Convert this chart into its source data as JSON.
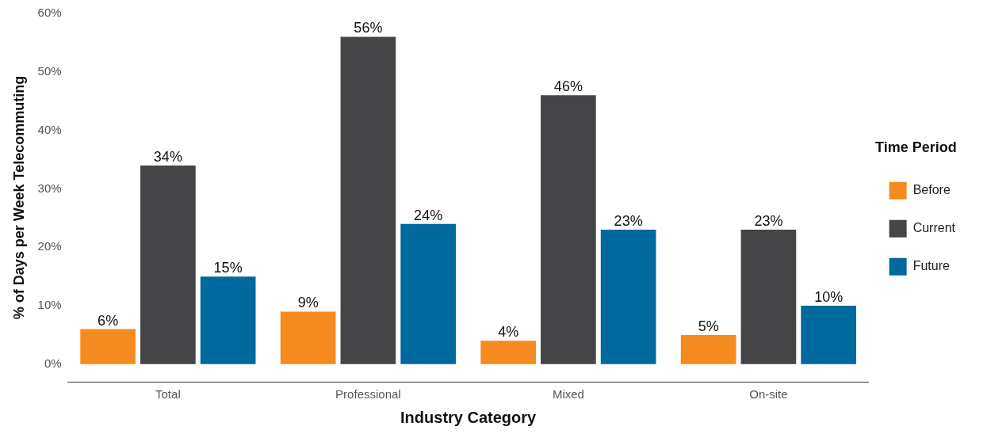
{
  "chart_data": {
    "type": "bar",
    "xlabel": "Industry Category",
    "ylabel": "% of Days per Week Telecommuting",
    "legend_title": "Time Period",
    "legend": "right",
    "grid": false,
    "categories": [
      "Total",
      "Professional",
      "Mixed",
      "On-site"
    ],
    "series": [
      {
        "name": "Before",
        "color": "#f58b1f",
        "values": [
          6,
          9,
          4,
          5
        ],
        "value_labels": [
          "6%",
          "9%",
          "4%",
          "5%"
        ]
      },
      {
        "name": "Current",
        "color": "#454547",
        "values": [
          34,
          56,
          46,
          23
        ],
        "value_labels": [
          "34%",
          "56%",
          "46%",
          "23%"
        ]
      },
      {
        "name": "Future",
        "color": "#00699e",
        "values": [
          15,
          24,
          23,
          10
        ],
        "value_labels": [
          "15%",
          "24%",
          "23%",
          "10%"
        ]
      }
    ],
    "ylim": [
      -3,
      60
    ],
    "yticks": [
      {
        "value": 0,
        "label": "0%"
      },
      {
        "value": 10,
        "label": "10%"
      },
      {
        "value": 20,
        "label": "20%"
      },
      {
        "value": 30,
        "label": "30%"
      },
      {
        "value": 40,
        "label": "40%"
      },
      {
        "value": 50,
        "label": "50%"
      },
      {
        "value": 60,
        "label": "60%"
      }
    ]
  }
}
